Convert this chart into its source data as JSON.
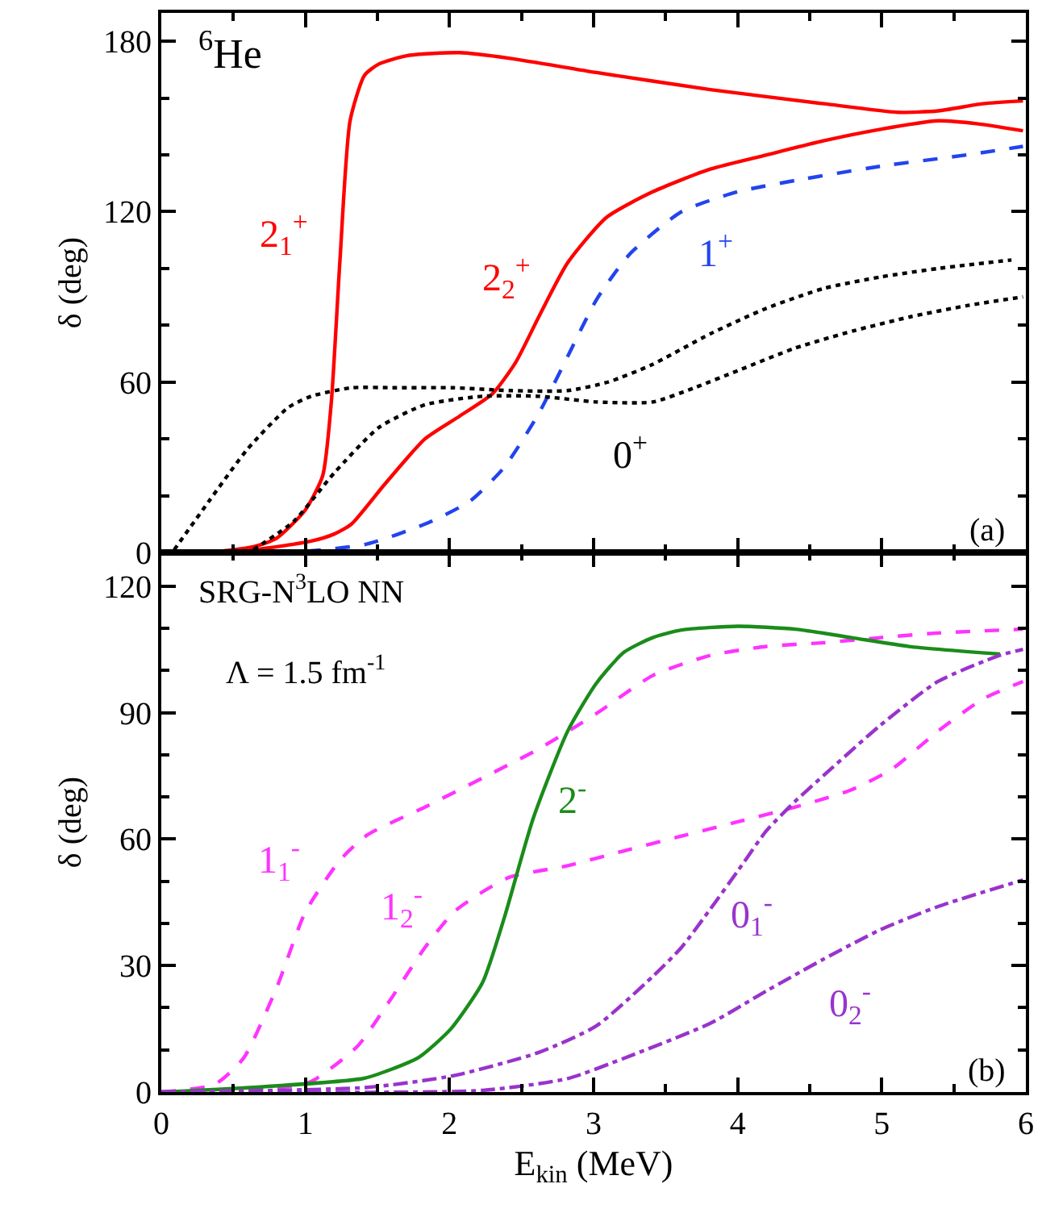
{
  "chart_data": [
    {
      "type": "line",
      "ylabel": "δ (deg)",
      "xlim": [
        0,
        6
      ],
      "ylim": [
        0,
        190
      ],
      "tick_labels": "y",
      "legend": false,
      "xticks": [
        0,
        {
          "value": 0.5,
          "label": null
        },
        1,
        {
          "value": 1.5,
          "label": null
        },
        2,
        {
          "value": 2.5,
          "label": null
        },
        3,
        {
          "value": 3.5,
          "label": null
        },
        4,
        {
          "value": 4.5,
          "label": null
        },
        5,
        {
          "value": 5.5,
          "label": null
        },
        6
      ],
      "yticks": [
        0,
        {
          "value": 20,
          "label": null
        },
        {
          "value": 40,
          "label": null
        },
        60,
        {
          "value": 80,
          "label": null
        },
        {
          "value": 100,
          "label": null
        },
        120,
        {
          "value": 140,
          "label": null
        },
        {
          "value": 160,
          "label": null
        },
        180
      ],
      "series": [
        {
          "name": "2$_{1}$$^{+}$",
          "color": "#ff0000",
          "line_style": "solid",
          "x": [
            0,
            0.33,
            0.64,
            0.8,
            1.0,
            1.12,
            1.18,
            1.24,
            1.31,
            1.41,
            1.51,
            1.71,
            2.07,
            2.42,
            3.02,
            3.81,
            4.6,
            5.11,
            5.39,
            5.7,
            5.98
          ],
          "values": [
            0,
            0,
            2,
            5,
            15,
            27,
            53,
            103,
            152,
            168,
            172,
            175,
            176,
            174,
            169,
            163,
            158,
            155,
            155.5,
            158,
            159
          ]
        },
        {
          "name": "2$_{2}$$^{+}$",
          "color": "#ff0000",
          "line_style": "solid",
          "x": [
            0,
            0.64,
            1.04,
            1.2,
            1.32,
            1.55,
            1.83,
            2.07,
            2.3,
            2.46,
            2.62,
            2.82,
            3.09,
            3.41,
            3.81,
            4.2,
            4.6,
            4.99,
            5.39,
            5.66,
            5.98
          ],
          "values": [
            0,
            1,
            4,
            6.5,
            10,
            24,
            40,
            48,
            56,
            67,
            83,
            102,
            118,
            127,
            135,
            140,
            145,
            149,
            152,
            151,
            148.5
          ]
        },
        {
          "name": "1$^{+}$",
          "color": "#2244ee",
          "line_style": "dashed",
          "x": [
            0,
            1.04,
            1.43,
            1.83,
            2.14,
            2.38,
            2.62,
            2.82,
            3.02,
            3.25,
            3.61,
            4.0,
            4.4,
            4.99,
            5.59,
            5.98
          ],
          "values": [
            0,
            0.6,
            3,
            10,
            18,
            30,
            49,
            69,
            89,
            105,
            120,
            127,
            131,
            136,
            140,
            143
          ]
        },
        {
          "color": "#000000",
          "line_style": "dotted",
          "x": [
            0.09,
            0.33,
            0.6,
            0.88,
            1.04,
            1.32,
            1.63,
            2.03,
            2.42,
            2.82,
            3.1,
            3.4,
            3.81,
            4.2,
            4.6,
            4.99,
            5.39,
            5.9
          ],
          "values": [
            1,
            18,
            36.5,
            51,
            55,
            58,
            58,
            58,
            57,
            57,
            60,
            66,
            77,
            86,
            93,
            97,
            100,
            103
          ]
        },
        {
          "name": "0$^{+}$",
          "color": "#000000",
          "line_style": "dotted",
          "x": [
            0.64,
            0.92,
            1.2,
            1.51,
            1.83,
            2.23,
            2.62,
            3.02,
            3.41,
            3.7,
            4.0,
            4.4,
            4.8,
            5.2,
            5.6,
            5.98
          ],
          "values": [
            1,
            11,
            28,
            44,
            52,
            55,
            55,
            53,
            53,
            58,
            64,
            72,
            78,
            83,
            87,
            90
          ]
        }
      ],
      "annotations": [
        "$^{6}$He",
        "(a)"
      ]
    },
    {
      "type": "line",
      "xlabel": "E$_{kin}$ (MeV)",
      "ylabel": "δ (deg)",
      "xlim": [
        0,
        6
      ],
      "ylim": [
        0,
        128
      ],
      "legend": false,
      "xticks": [
        0,
        {
          "value": 0.5,
          "label": null
        },
        1,
        {
          "value": 1.5,
          "label": null
        },
        2,
        {
          "value": 2.5,
          "label": null
        },
        3,
        {
          "value": 3.5,
          "label": null
        },
        4,
        {
          "value": 4.5,
          "label": null
        },
        5,
        {
          "value": 5.5,
          "label": null
        },
        6
      ],
      "yticks": [
        0,
        {
          "value": 10,
          "label": null
        },
        {
          "value": 20,
          "label": null
        },
        30,
        {
          "value": 40,
          "label": null
        },
        {
          "value": 50,
          "label": null
        },
        60,
        {
          "value": 70,
          "label": null
        },
        {
          "value": 80,
          "label": null
        },
        90,
        {
          "value": 100,
          "label": null
        },
        {
          "value": 110,
          "label": null
        },
        120
      ],
      "series": [
        {
          "name": "1$_{1}$$^{-}$",
          "color": "#ff33ff",
          "line_style": "dashed",
          "x": [
            0,
            0.37,
            0.57,
            0.8,
            1.0,
            1.24,
            1.43,
            1.83,
            2.23,
            2.62,
            3.02,
            3.41,
            3.81,
            4.2,
            4.6,
            4.99,
            5.39,
            5.98
          ],
          "values": [
            0,
            1.8,
            8,
            24.7,
            42.7,
            55,
            61,
            67.6,
            74.5,
            81.4,
            89.8,
            98.8,
            103.6,
            105.7,
            106.6,
            107.8,
            108.9,
            109.8
          ]
        },
        {
          "name": "1$_{2}$$^{-}$",
          "color": "#ff33ff",
          "line_style": "dashed",
          "x": [
            0,
            0.84,
            1.04,
            1.36,
            1.59,
            1.83,
            2.03,
            2.23,
            2.42,
            2.82,
            3.21,
            3.61,
            4.0,
            4.4,
            4.79,
            5.07,
            5.39,
            5.7,
            5.98
          ],
          "values": [
            0,
            1.1,
            2.5,
            10.8,
            21.9,
            34.3,
            42.7,
            47.5,
            51,
            53.7,
            57.2,
            60.7,
            64.1,
            67.6,
            71.7,
            76.6,
            85.6,
            93.2,
            97.4
          ]
        },
        {
          "name": "2$^{-}$",
          "color": "#1a8c1a",
          "line_style": "solid",
          "x": [
            0,
            0.64,
            1.4,
            1.59,
            1.79,
            2.01,
            2.23,
            2.38,
            2.58,
            2.82,
            3.02,
            3.21,
            3.41,
            3.61,
            4.0,
            4.4,
            4.79,
            5.19,
            5.82
          ],
          "values": [
            0,
            1.1,
            3.2,
            5.3,
            8.3,
            15,
            26,
            41.3,
            64.8,
            85.6,
            97,
            104.3,
            107.8,
            109.6,
            110.5,
            109.8,
            107.8,
            105.7,
            103.9
          ]
        },
        {
          "name": "0$_{1}$$^{-}$",
          "color": "#9933cc",
          "line_style": "dashdot",
          "x": [
            0,
            1.43,
            2.03,
            2.62,
            3.02,
            3.41,
            3.61,
            3.81,
            4.0,
            4.2,
            4.4,
            4.6,
            4.99,
            5.39,
            5.82,
            5.98
          ],
          "values": [
            0,
            1.1,
            3.9,
            9.4,
            15.7,
            27.4,
            34.3,
            43.4,
            52.4,
            62,
            69,
            75.2,
            87,
            97.4,
            103.6,
            105
          ]
        },
        {
          "name": "0$_{2}$$^{-}$",
          "color": "#9933cc",
          "line_style": "dashdot",
          "x": [
            0,
            2.23,
            2.82,
            3.21,
            3.81,
            4.2,
            4.6,
            4.99,
            5.39,
            5.98
          ],
          "values": [
            0,
            0.4,
            3.2,
            8,
            16.3,
            24,
            31.6,
            38.5,
            44,
            50.3
          ]
        }
      ],
      "annotations": [
        "SRG-N$^{3}$LO NN",
        "Λ = 1.5 fm$^{-1}$",
        "(b)"
      ]
    }
  ]
}
